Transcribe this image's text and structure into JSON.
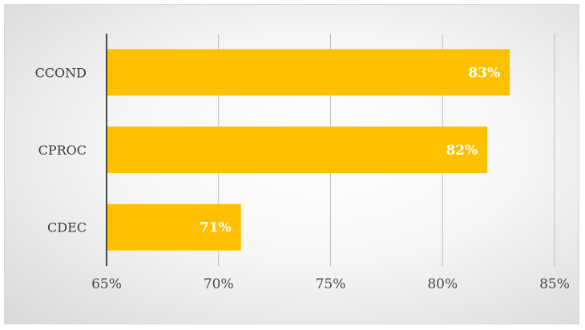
{
  "chart_data": {
    "type": "bar",
    "orientation": "horizontal",
    "categories": [
      "CCOND",
      "CPROC",
      "CDEC"
    ],
    "values": [
      83,
      82,
      71
    ],
    "data_labels": [
      "83%",
      "82%",
      "71%"
    ],
    "xlim": [
      65,
      85
    ],
    "x_ticks": [
      65,
      70,
      75,
      80,
      85
    ],
    "x_tick_labels": [
      "65%",
      "70%",
      "75%",
      "80%",
      "85%"
    ],
    "grid": "vertical",
    "legend": "none",
    "bar_color": "#FFC000",
    "title": "",
    "xlabel": "",
    "ylabel": ""
  }
}
